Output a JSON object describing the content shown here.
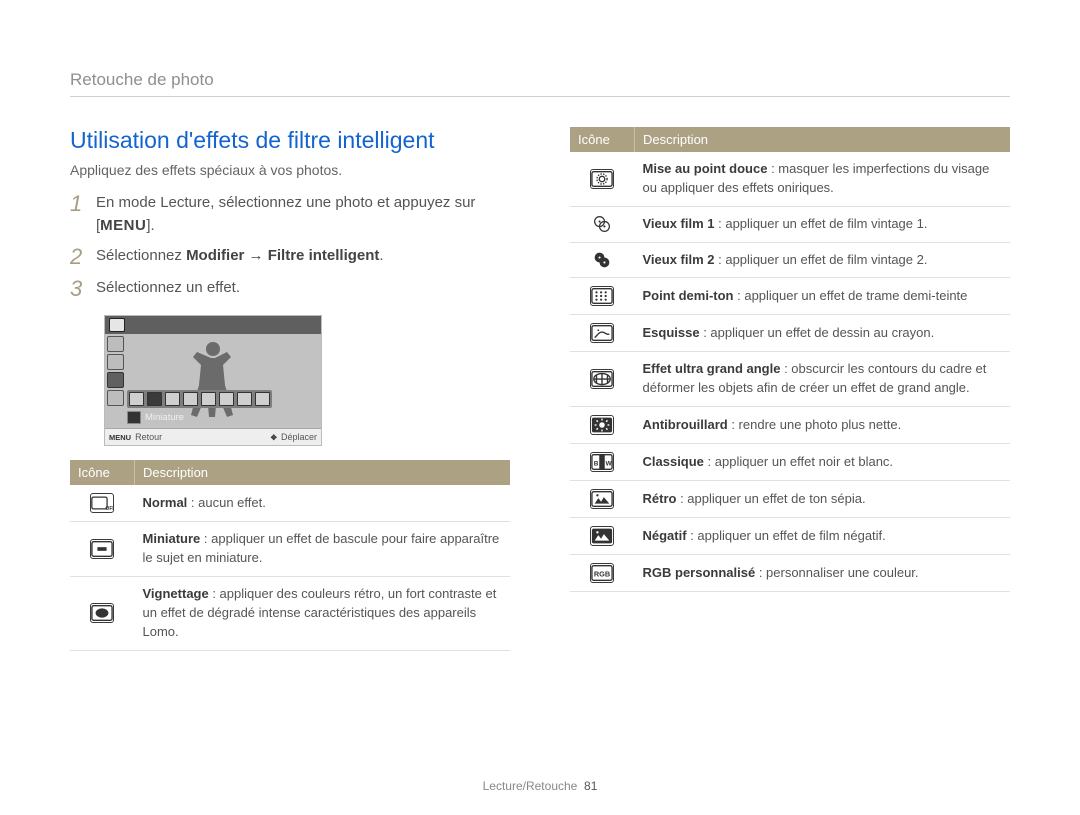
{
  "breadcrumb": "Retouche de photo",
  "section_title": "Utilisation d'effets de filtre intelligent",
  "subtitle": "Appliquez des effets spéciaux à vos photos.",
  "steps": [
    {
      "num": "1",
      "pre": "En mode Lecture, sélectionnez une photo et appuyez sur [",
      "menu": "MENU",
      "post": "]."
    },
    {
      "num": "2",
      "pre": "Sélectionnez ",
      "bold": "Modifier → Filtre intelligent",
      "post": "."
    },
    {
      "num": "3",
      "pre": "Sélectionnez un effet.",
      "bold": "",
      "post": ""
    }
  ],
  "screenshot": {
    "selected_label": "Miniature",
    "footer_left_icon": "MENU",
    "footer_left": "Retour",
    "footer_right_icon": "✥",
    "footer_right": "Déplacer"
  },
  "table_headers": {
    "icon": "Icône",
    "desc": "Description"
  },
  "left_rows": [
    {
      "icon": "normal-off",
      "term": "Normal",
      "text": " : aucun effet."
    },
    {
      "icon": "miniature",
      "term": "Miniature",
      "text": " : appliquer un effet de bascule pour faire apparaître le sujet en miniature."
    },
    {
      "icon": "vignette",
      "term": "Vignettage",
      "text": " : appliquer des couleurs rétro, un fort contraste et un effet de dégradé intense caractéristiques des appareils Lomo."
    }
  ],
  "right_rows": [
    {
      "icon": "soft-focus",
      "term": "Mise au point douce",
      "text": " : masquer les imperfections du visage ou appliquer des effets oniriques."
    },
    {
      "icon": "old-film-1",
      "term": "Vieux film 1",
      "text": " : appliquer un effet de film vintage 1."
    },
    {
      "icon": "old-film-2",
      "term": "Vieux film 2",
      "text": " : appliquer un effet de film vintage 2."
    },
    {
      "icon": "halftone",
      "term": "Point demi-ton",
      "text": " : appliquer un effet de trame demi-teinte"
    },
    {
      "icon": "sketch",
      "term": "Esquisse",
      "text": " : appliquer un effet de dessin au crayon."
    },
    {
      "icon": "fisheye",
      "term": "Effet ultra grand angle",
      "text": " : obscurcir les contours du cadre et déformer les objets afin de créer un effet de grand angle."
    },
    {
      "icon": "defog",
      "term": "Antibrouillard",
      "text": " : rendre une photo plus nette."
    },
    {
      "icon": "classic",
      "term": "Classique",
      "text": " : appliquer un effet noir et blanc."
    },
    {
      "icon": "retro",
      "term": "Rétro",
      "text": " : appliquer un effet de ton sépia."
    },
    {
      "icon": "negative",
      "term": "Négatif",
      "text": " : appliquer un effet de film négatif."
    },
    {
      "icon": "rgb",
      "term": "RGB personnalisé",
      "text": " : personnaliser une couleur."
    }
  ],
  "footer": {
    "section": "Lecture/Retouche",
    "page": "81"
  },
  "colors": {
    "title": "#1364d0",
    "step_num": "#a69d84",
    "table_header_bg": "#ada183",
    "table_header_fg": "#ffffff",
    "body_text": "#555555",
    "bold_text": "#3b3b3b",
    "divider": "#e0e0e0"
  }
}
